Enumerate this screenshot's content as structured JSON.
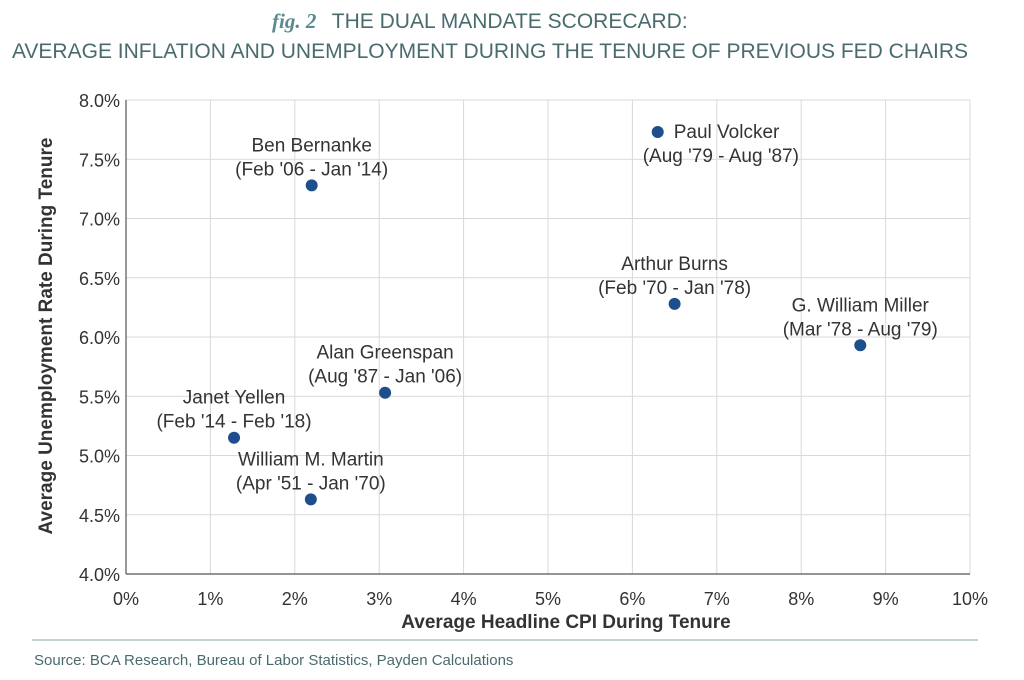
{
  "header": {
    "fig_label": "fig. 2",
    "title_line1": "THE DUAL MANDATE SCORECARD:",
    "title_line2": "AVERAGE INFLATION AND UNEMPLOYMENT DURING THE TENURE OF PREVIOUS FED CHAIRS"
  },
  "footer": {
    "source": "Source: BCA Research, Bureau of Labor Statistics, Payden Calculations"
  },
  "colors": {
    "title": "#4a6b6e",
    "fig_label": "#5b8a8f",
    "point": "#1f4e8c",
    "grid": "#d9d9d9",
    "axis_text": "#333333",
    "rule": "#8aa9ab"
  },
  "chart_data": {
    "type": "scatter",
    "title": "THE DUAL MANDATE SCORECARD: AVERAGE INFLATION AND UNEMPLOYMENT DURING THE TENURE OF PREVIOUS FED CHAIRS",
    "xlabel": "Average Headline CPI During Tenure",
    "ylabel": "Average Unemployment Rate During Tenure",
    "xlim": [
      0,
      10
    ],
    "ylim": [
      4.0,
      8.0
    ],
    "x_ticks": [
      0,
      1,
      2,
      3,
      4,
      5,
      6,
      7,
      8,
      9,
      10
    ],
    "x_tick_labels": [
      "0%",
      "1%",
      "2%",
      "3%",
      "4%",
      "5%",
      "6%",
      "7%",
      "8%",
      "9%",
      "10%"
    ],
    "y_ticks": [
      4.0,
      4.5,
      5.0,
      5.5,
      6.0,
      6.5,
      7.0,
      7.5,
      8.0
    ],
    "y_tick_labels": [
      "4.0%",
      "4.5%",
      "5.0%",
      "5.5%",
      "6.0%",
      "6.5%",
      "7.0%",
      "7.5%",
      "8.0%"
    ],
    "grid": true,
    "points": [
      {
        "name": "Paul Volcker",
        "tenure": "(Aug '79 - Aug '87)",
        "x": 6.3,
        "y": 7.73,
        "label_pos": "right"
      },
      {
        "name": "Ben Bernanke",
        "tenure": "(Feb '06 - Jan '14)",
        "x": 2.2,
        "y": 7.28,
        "label_pos": "above"
      },
      {
        "name": "Arthur Burns",
        "tenure": "(Feb '70 - Jan '78)",
        "x": 6.5,
        "y": 6.28,
        "label_pos": "above"
      },
      {
        "name": "G. William Miller",
        "tenure": "(Mar '78 - Aug '79)",
        "x": 8.7,
        "y": 5.93,
        "label_pos": "above"
      },
      {
        "name": "Alan Greenspan",
        "tenure": "(Aug '87 - Jan '06)",
        "x": 3.07,
        "y": 5.53,
        "label_pos": "above"
      },
      {
        "name": "Janet Yellen",
        "tenure": "(Feb '14 - Feb '18)",
        "x": 1.28,
        "y": 5.15,
        "label_pos": "above"
      },
      {
        "name": "William M. Martin",
        "tenure": "(Apr '51 - Jan '70)",
        "x": 2.19,
        "y": 4.63,
        "label_pos": "above"
      }
    ]
  }
}
